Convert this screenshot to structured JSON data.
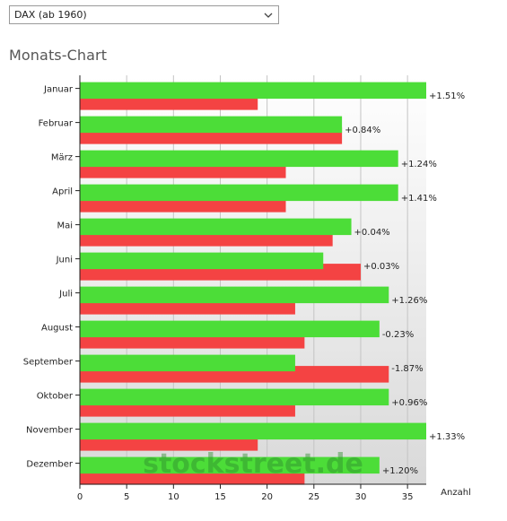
{
  "index_select": {
    "value": "DAX (ab 1960)"
  },
  "heading": "Monats-Chart",
  "watermark": "stockstreet.de",
  "colors": {
    "up": "#4cdd38",
    "down": "#f44343"
  },
  "chart_data": {
    "type": "bar",
    "orientation": "horizontal",
    "categories": [
      "Januar",
      "Februar",
      "März",
      "April",
      "Mai",
      "Juni",
      "Juli",
      "August",
      "September",
      "Oktober",
      "November",
      "Dezember"
    ],
    "series": [
      {
        "color": "#4cdd38",
        "values": [
          37,
          28,
          34,
          34,
          29,
          26,
          33,
          32,
          23,
          33,
          37,
          32
        ]
      },
      {
        "color": "#f44343",
        "values": [
          19,
          28,
          22,
          22,
          27,
          30,
          23,
          24,
          33,
          23,
          19,
          24
        ]
      }
    ],
    "annotations": [
      "+1.51%",
      "+0.84%",
      "+1.24%",
      "+1.41%",
      "+0.04%",
      "+0.03%",
      "+1.26%",
      "-0.23%",
      "-1.87%",
      "+0.96%",
      "+1.33%",
      "+1.20%"
    ],
    "xlabel": "Anzahl",
    "xticks": [
      0,
      5,
      10,
      15,
      20,
      25,
      30,
      35
    ],
    "xlim": [
      0,
      37
    ],
    "grid": true
  }
}
